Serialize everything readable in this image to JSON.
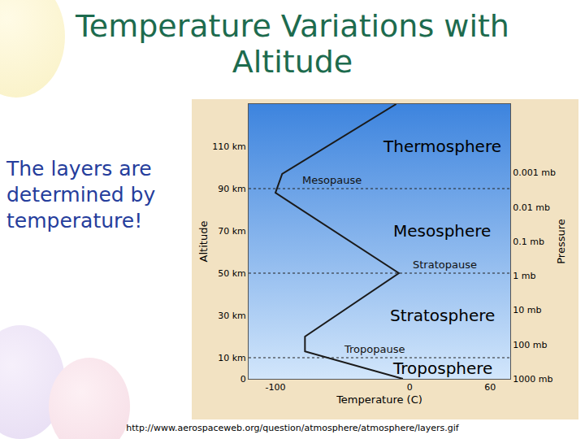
{
  "slide": {
    "title": "Temperature Variations with Altitude",
    "text": "The layers are determined by temperature!",
    "source": "http://www.aerospaceweb.org/question/atmosphere/atmosphere/layers.gif"
  },
  "chart_data": {
    "type": "line",
    "x_label": "Temperature (C)",
    "y_label": "Pressure",
    "y2_label": "Altitude",
    "x": [
      -5,
      -78,
      -78,
      -8,
      -100,
      -95,
      -10
    ],
    "series": [
      {
        "axis": "y2",
        "color": "#1a1a1a",
        "values": [
          0,
          13,
          20,
          50,
          88,
          97,
          130
        ]
      }
    ],
    "xlim": [
      -120,
      75
    ],
    "xticks": [
      -100,
      0,
      60
    ],
    "log": "y",
    "ylim": [
      1000,
      1e-05
    ],
    "yticks": [
      {
        "value": 1000,
        "label": "1000 mb"
      },
      {
        "value": 100,
        "label": "100 mb"
      },
      {
        "value": 10,
        "label": "10 mb"
      },
      {
        "value": 1,
        "label": "1 mb"
      },
      {
        "value": 0.1,
        "label": "0.1 mb"
      },
      {
        "value": 0.01,
        "label": "0.01 mb"
      },
      {
        "value": 0.001,
        "label": "0.001 mb"
      }
    ],
    "y2lim": [
      0,
      130
    ],
    "y2ticks": [
      0,
      {
        "value": 10,
        "label": "10 km"
      },
      {
        "value": 30,
        "label": "30 km"
      },
      {
        "value": 50,
        "label": "50 km"
      },
      {
        "value": 70,
        "label": "70 km"
      },
      {
        "value": 90,
        "label": "90 km"
      },
      {
        "value": 110,
        "label": "110 km"
      }
    ],
    "layers": [
      "Troposphere",
      "Stratosphere",
      "Mesosphere",
      "Thermosphere"
    ],
    "boundaries": [
      {
        "label": "Tropopause",
        "value": 10
      },
      {
        "label": "Stratopause",
        "value": 50
      },
      {
        "label": "Mesopause",
        "value": 90
      }
    ],
    "grid": false
  }
}
